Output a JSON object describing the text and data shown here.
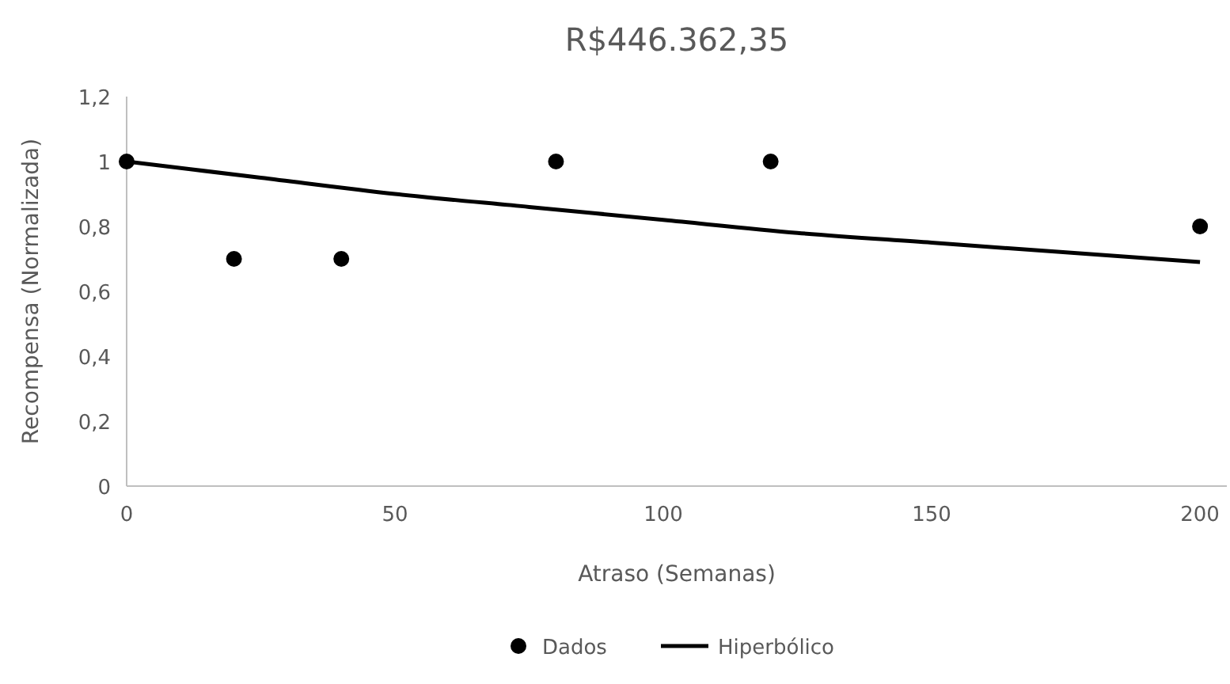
{
  "chart_data": {
    "type": "scatter",
    "title": "R$446.362,35",
    "xlabel": "Atraso (Semanas)",
    "ylabel": "Recompensa (Normalizada)",
    "xlim": [
      0,
      205
    ],
    "xticks": [
      0,
      50,
      100,
      150,
      200
    ],
    "ylim": [
      0,
      1.2
    ],
    "yticks": [
      0,
      {
        "value": 0.2,
        "label": "0,2"
      },
      {
        "value": 0.4,
        "label": "0,4"
      },
      {
        "value": 0.6,
        "label": "0,6"
      },
      {
        "value": 0.8,
        "label": "0,8"
      },
      1,
      {
        "value": 1.2,
        "label": "1,2"
      }
    ],
    "grid": false,
    "legend": "bottom",
    "marker": "circle",
    "series": [
      {
        "name": "Dados",
        "color": "#000000",
        "x": [
          0,
          20,
          40,
          80,
          120,
          200
        ],
        "values": [
          1,
          0.7,
          0.7,
          1,
          1,
          0.8
        ]
      },
      {
        "name": "Hiperbólico",
        "type": "line",
        "color": "#000000",
        "line_style": "solid",
        "marker": "none",
        "x": [
          0,
          25,
          50,
          75,
          100,
          125,
          150,
          175,
          200
        ],
        "values": [
          1,
          0.95,
          0.9,
          0.86,
          0.82,
          0.78,
          0.75,
          0.72,
          0.69
        ]
      }
    ]
  }
}
